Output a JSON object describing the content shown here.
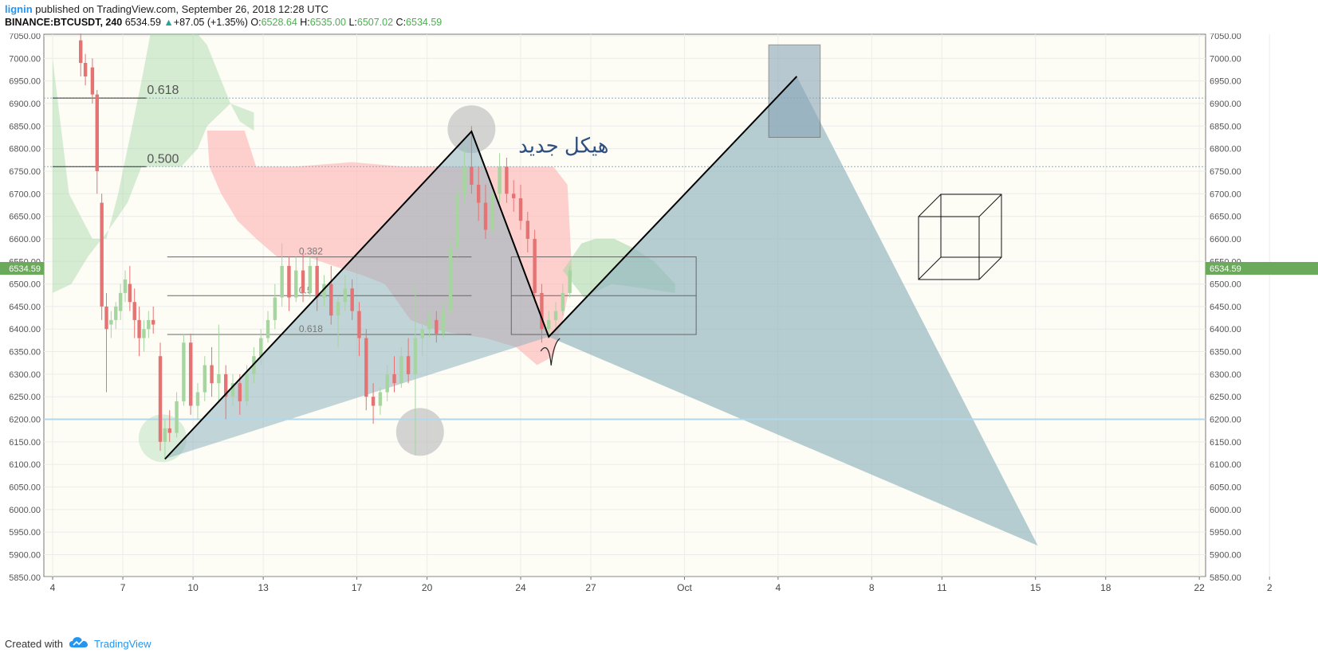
{
  "header": {
    "author": "lignin",
    "published_text": "published on TradingView.com, September 26, 2018 12:28 UTC",
    "symbol": "BINANCE:BTCUSDT, 240",
    "last_price": "6534.59",
    "change_arrow": "▲",
    "change": "+87.05 (+1.35%)",
    "o_label": "O:",
    "o_value": "6528.64",
    "h_label": "H:",
    "h_value": "6535.00",
    "l_label": "L:",
    "l_value": "6507.02",
    "c_label": "C:",
    "c_value": "6534.59"
  },
  "footer": {
    "created_with": "Created with",
    "brand": "TradingView"
  },
  "colors": {
    "background": "#fdfdf6",
    "up_candle": "#a6d5a0",
    "down_candle": "#e57373",
    "cloud_green": "#a5d6a7",
    "cloud_red": "#ffb3b3",
    "triangle_fill": "#8fb3bd",
    "price_badge": "#6aaa5a",
    "grid_line": "#ececec"
  },
  "chart_data": {
    "type": "candlestick",
    "symbol": "BINANCE:BTCUSDT",
    "interval": "240",
    "ylim": [
      5850,
      7050
    ],
    "y_ticks": [
      7050,
      7000,
      6950,
      6900,
      6850,
      6800,
      6750,
      6700,
      6650,
      6600,
      6550,
      6500,
      6450,
      6400,
      6350,
      6300,
      6250,
      6200,
      6150,
      6100,
      6050,
      6000,
      5950,
      5900,
      5850
    ],
    "x_ticks": [
      {
        "label": "4",
        "day": 4
      },
      {
        "label": "7",
        "day": 7
      },
      {
        "label": "10",
        "day": 10
      },
      {
        "label": "13",
        "day": 13
      },
      {
        "label": "17",
        "day": 17
      },
      {
        "label": "20",
        "day": 20
      },
      {
        "label": "24",
        "day": 24
      },
      {
        "label": "27",
        "day": 27
      },
      {
        "label": "Oct",
        "day": 31
      },
      {
        "label": "4",
        "day": 35
      },
      {
        "label": "8",
        "day": 39
      },
      {
        "label": "11",
        "day": 42
      },
      {
        "label": "15",
        "day": 46
      },
      {
        "label": "18",
        "day": 49
      },
      {
        "label": "22",
        "day": 53
      },
      {
        "label": "2",
        "day": 56
      }
    ],
    "last_price": 6534.59,
    "horizontal_lines": [
      6912,
      6760,
      6200
    ],
    "fib_levels_upper": [
      {
        "label": "0.618",
        "price": 6912
      },
      {
        "label": "0.500",
        "price": 6760
      }
    ],
    "fib_levels_lower": [
      {
        "label": "0.382",
        "price": 6560
      },
      {
        "label": "0.5",
        "price": 6474
      },
      {
        "label": "0.618",
        "price": 6388
      }
    ],
    "annotation_text": "هيكل جديد",
    "zigzag": [
      {
        "day": 8.8,
        "price": 6112
      },
      {
        "day": 21.9,
        "price": 6838
      },
      {
        "day": 25.2,
        "price": 6383
      },
      {
        "day": 35.8,
        "price": 6960
      }
    ],
    "triangle_right": [
      {
        "day": 35.8,
        "price": 6960
      },
      {
        "day": 25.2,
        "price": 6383
      },
      {
        "day": 46.1,
        "price": 5920
      }
    ],
    "target_box": {
      "day_from": 34.6,
      "day_to": 36.8,
      "price_from": 6825,
      "price_to": 7030
    },
    "range_box": {
      "day_from": 23.6,
      "day_to": 31.5,
      "price_from": 6388,
      "price_to": 6560
    },
    "circles": [
      {
        "day": 8.7,
        "price": 6158,
        "color": "green"
      },
      {
        "day": 21.9,
        "price": 6843,
        "color": "gray"
      },
      {
        "day": 19.7,
        "price": 6172,
        "color": "gray"
      }
    ],
    "candles": [
      {
        "day": 5.2,
        "o": 7040,
        "h": 7060,
        "c": 6990,
        "l": 6960
      },
      {
        "day": 5.4,
        "o": 6990,
        "h": 7010,
        "c": 6960,
        "l": 6940
      },
      {
        "day": 5.7,
        "o": 6980,
        "h": 7000,
        "c": 6920,
        "l": 6900
      },
      {
        "day": 5.9,
        "o": 6920,
        "h": 6930,
        "c": 6750,
        "l": 6700
      },
      {
        "day": 6.1,
        "o": 6680,
        "h": 6700,
        "c": 6450,
        "l": 6420
      },
      {
        "day": 6.3,
        "o": 6450,
        "h": 6480,
        "c": 6400,
        "l": 6260
      },
      {
        "day": 6.5,
        "o": 6410,
        "h": 6440,
        "c": 6420,
        "l": 6380
      },
      {
        "day": 6.7,
        "o": 6420,
        "h": 6460,
        "c": 6450,
        "l": 6400
      },
      {
        "day": 6.9,
        "o": 6440,
        "h": 6500,
        "c": 6480,
        "l": 6420
      },
      {
        "day": 7.1,
        "o": 6480,
        "h": 6530,
        "c": 6510,
        "l": 6460
      },
      {
        "day": 7.3,
        "o": 6500,
        "h": 6540,
        "c": 6460,
        "l": 6440
      },
      {
        "day": 7.5,
        "o": 6460,
        "h": 6490,
        "c": 6420,
        "l": 6380
      },
      {
        "day": 7.7,
        "o": 6420,
        "h": 6450,
        "c": 6380,
        "l": 6340
      },
      {
        "day": 7.9,
        "o": 6380,
        "h": 6420,
        "c": 6400,
        "l": 6350
      },
      {
        "day": 8.1,
        "o": 6400,
        "h": 6440,
        "c": 6420,
        "l": 6380
      },
      {
        "day": 8.3,
        "o": 6420,
        "h": 6450,
        "c": 6410,
        "l": 6390
      },
      {
        "day": 8.6,
        "o": 6340,
        "h": 6370,
        "c": 6150,
        "l": 6130
      },
      {
        "day": 8.8,
        "o": 6150,
        "h": 6200,
        "c": 6180,
        "l": 6110
      },
      {
        "day": 9.0,
        "o": 6180,
        "h": 6220,
        "c": 6170,
        "l": 6150
      },
      {
        "day": 9.3,
        "o": 6170,
        "h": 6260,
        "c": 6240,
        "l": 6160
      },
      {
        "day": 9.6,
        "o": 6240,
        "h": 6390,
        "c": 6370,
        "l": 6230
      },
      {
        "day": 9.9,
        "o": 6370,
        "h": 6390,
        "c": 6230,
        "l": 6210
      },
      {
        "day": 10.2,
        "o": 6230,
        "h": 6280,
        "c": 6260,
        "l": 6200
      },
      {
        "day": 10.5,
        "o": 6260,
        "h": 6340,
        "c": 6320,
        "l": 6240
      },
      {
        "day": 10.8,
        "o": 6320,
        "h": 6360,
        "c": 6280,
        "l": 6250
      },
      {
        "day": 11.1,
        "o": 6280,
        "h": 6410,
        "c": 6300,
        "l": 6240
      },
      {
        "day": 11.4,
        "o": 6300,
        "h": 6320,
        "c": 6250,
        "l": 6200
      },
      {
        "day": 11.7,
        "o": 6250,
        "h": 6300,
        "c": 6280,
        "l": 6230
      },
      {
        "day": 12.0,
        "o": 6280,
        "h": 6300,
        "c": 6240,
        "l": 6210
      },
      {
        "day": 12.3,
        "o": 6240,
        "h": 6320,
        "c": 6300,
        "l": 6230
      },
      {
        "day": 12.6,
        "o": 6300,
        "h": 6360,
        "c": 6340,
        "l": 6280
      },
      {
        "day": 12.9,
        "o": 6340,
        "h": 6400,
        "c": 6380,
        "l": 6320
      },
      {
        "day": 13.2,
        "o": 6380,
        "h": 6440,
        "c": 6420,
        "l": 6370
      },
      {
        "day": 13.5,
        "o": 6420,
        "h": 6500,
        "c": 6470,
        "l": 6400
      },
      {
        "day": 13.8,
        "o": 6470,
        "h": 6590,
        "c": 6540,
        "l": 6450
      },
      {
        "day": 14.1,
        "o": 6540,
        "h": 6560,
        "c": 6470,
        "l": 6440
      },
      {
        "day": 14.4,
        "o": 6470,
        "h": 6560,
        "c": 6530,
        "l": 6460
      },
      {
        "day": 14.7,
        "o": 6530,
        "h": 6570,
        "c": 6480,
        "l": 6460
      },
      {
        "day": 15.0,
        "o": 6480,
        "h": 6560,
        "c": 6540,
        "l": 6470
      },
      {
        "day": 15.3,
        "o": 6540,
        "h": 6560,
        "c": 6470,
        "l": 6440
      },
      {
        "day": 15.6,
        "o": 6470,
        "h": 6520,
        "c": 6500,
        "l": 6450
      },
      {
        "day": 15.9,
        "o": 6500,
        "h": 6540,
        "c": 6430,
        "l": 6410
      },
      {
        "day": 16.2,
        "o": 6430,
        "h": 6470,
        "c": 6460,
        "l": 6360
      },
      {
        "day": 16.5,
        "o": 6460,
        "h": 6520,
        "c": 6490,
        "l": 6440
      },
      {
        "day": 16.8,
        "o": 6490,
        "h": 6510,
        "c": 6440,
        "l": 6420
      },
      {
        "day": 17.1,
        "o": 6440,
        "h": 6460,
        "c": 6380,
        "l": 6340
      },
      {
        "day": 17.4,
        "o": 6380,
        "h": 6400,
        "c": 6250,
        "l": 6220
      },
      {
        "day": 17.7,
        "o": 6250,
        "h": 6280,
        "c": 6230,
        "l": 6190
      },
      {
        "day": 18.0,
        "o": 6230,
        "h": 6270,
        "c": 6260,
        "l": 6210
      },
      {
        "day": 18.3,
        "o": 6260,
        "h": 6320,
        "c": 6300,
        "l": 6240
      },
      {
        "day": 18.6,
        "o": 6300,
        "h": 6340,
        "c": 6280,
        "l": 6260
      },
      {
        "day": 18.9,
        "o": 6280,
        "h": 6360,
        "c": 6340,
        "l": 6270
      },
      {
        "day": 19.2,
        "o": 6340,
        "h": 6380,
        "c": 6300,
        "l": 6280
      },
      {
        "day": 19.5,
        "o": 6300,
        "h": 6500,
        "c": 6380,
        "l": 6120
      },
      {
        "day": 19.8,
        "o": 6380,
        "h": 6420,
        "c": 6400,
        "l": 6340
      },
      {
        "day": 20.1,
        "o": 6400,
        "h": 6440,
        "c": 6420,
        "l": 6380
      },
      {
        "day": 20.4,
        "o": 6420,
        "h": 6440,
        "c": 6390,
        "l": 6370
      },
      {
        "day": 20.7,
        "o": 6390,
        "h": 6460,
        "c": 6440,
        "l": 6380
      },
      {
        "day": 21.0,
        "o": 6440,
        "h": 6600,
        "c": 6580,
        "l": 6430
      },
      {
        "day": 21.3,
        "o": 6580,
        "h": 6720,
        "c": 6700,
        "l": 6560
      },
      {
        "day": 21.6,
        "o": 6700,
        "h": 6800,
        "c": 6760,
        "l": 6680
      },
      {
        "day": 21.9,
        "o": 6760,
        "h": 6850,
        "c": 6720,
        "l": 6700
      },
      {
        "day": 22.2,
        "o": 6720,
        "h": 6760,
        "c": 6680,
        "l": 6640
      },
      {
        "day": 22.5,
        "o": 6680,
        "h": 6720,
        "c": 6620,
        "l": 6600
      },
      {
        "day": 22.8,
        "o": 6620,
        "h": 6720,
        "c": 6700,
        "l": 6610
      },
      {
        "day": 23.1,
        "o": 6700,
        "h": 6790,
        "c": 6760,
        "l": 6680
      },
      {
        "day": 23.4,
        "o": 6760,
        "h": 6780,
        "c": 6700,
        "l": 6680
      },
      {
        "day": 23.7,
        "o": 6700,
        "h": 6730,
        "c": 6690,
        "l": 6660
      },
      {
        "day": 24.0,
        "o": 6690,
        "h": 6720,
        "c": 6640,
        "l": 6620
      },
      {
        "day": 24.3,
        "o": 6640,
        "h": 6660,
        "c": 6600,
        "l": 6570
      },
      {
        "day": 24.6,
        "o": 6600,
        "h": 6620,
        "c": 6480,
        "l": 6460
      },
      {
        "day": 24.9,
        "o": 6480,
        "h": 6500,
        "c": 6400,
        "l": 6370
      },
      {
        "day": 25.2,
        "o": 6400,
        "h": 6440,
        "c": 6420,
        "l": 6380
      },
      {
        "day": 25.5,
        "o": 6420,
        "h": 6460,
        "c": 6440,
        "l": 6400
      },
      {
        "day": 25.8,
        "o": 6440,
        "h": 6500,
        "c": 6480,
        "l": 6430
      },
      {
        "day": 26.1,
        "o": 6480,
        "h": 6540,
        "c": 6530,
        "l": 6470
      }
    ]
  }
}
